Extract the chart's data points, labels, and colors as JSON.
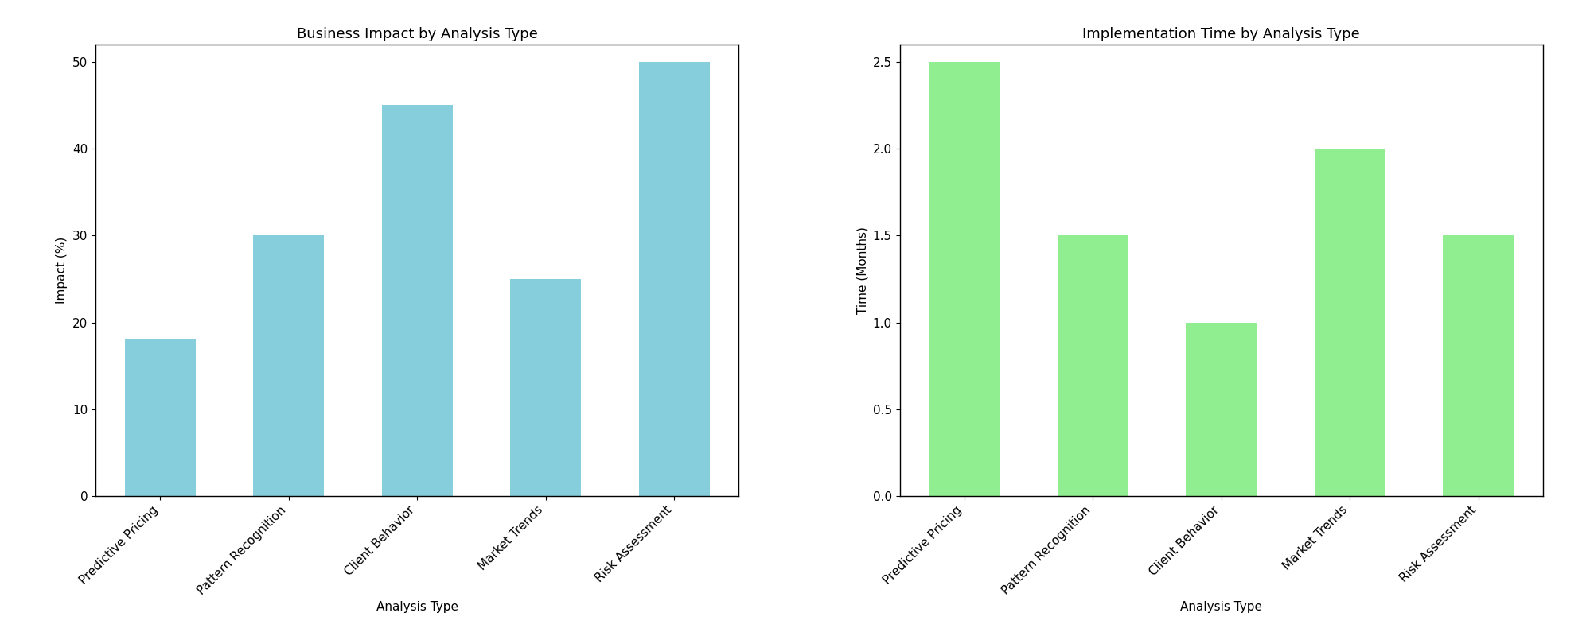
{
  "categories": [
    "Predictive Pricing",
    "Pattern Recognition",
    "Client Behavior",
    "Market Trends",
    "Risk Assessment"
  ],
  "impact_values": [
    18,
    30,
    45,
    25,
    50
  ],
  "time_values": [
    2.5,
    1.5,
    1.0,
    2.0,
    1.5
  ],
  "bar_color_left": "#87CEDC",
  "bar_color_right": "#90EE90",
  "title_left": "Business Impact by Analysis Type",
  "title_right": "Implementation Time by Analysis Type",
  "xlabel": "Analysis Type",
  "ylabel_left": "Impact (%)",
  "ylabel_right": "Time (Months)",
  "ylim_left": [
    0,
    52
  ],
  "ylim_right": [
    0,
    2.6
  ],
  "title_fontsize": 13,
  "label_fontsize": 11,
  "tick_fontsize": 11,
  "bar_width": 0.55
}
